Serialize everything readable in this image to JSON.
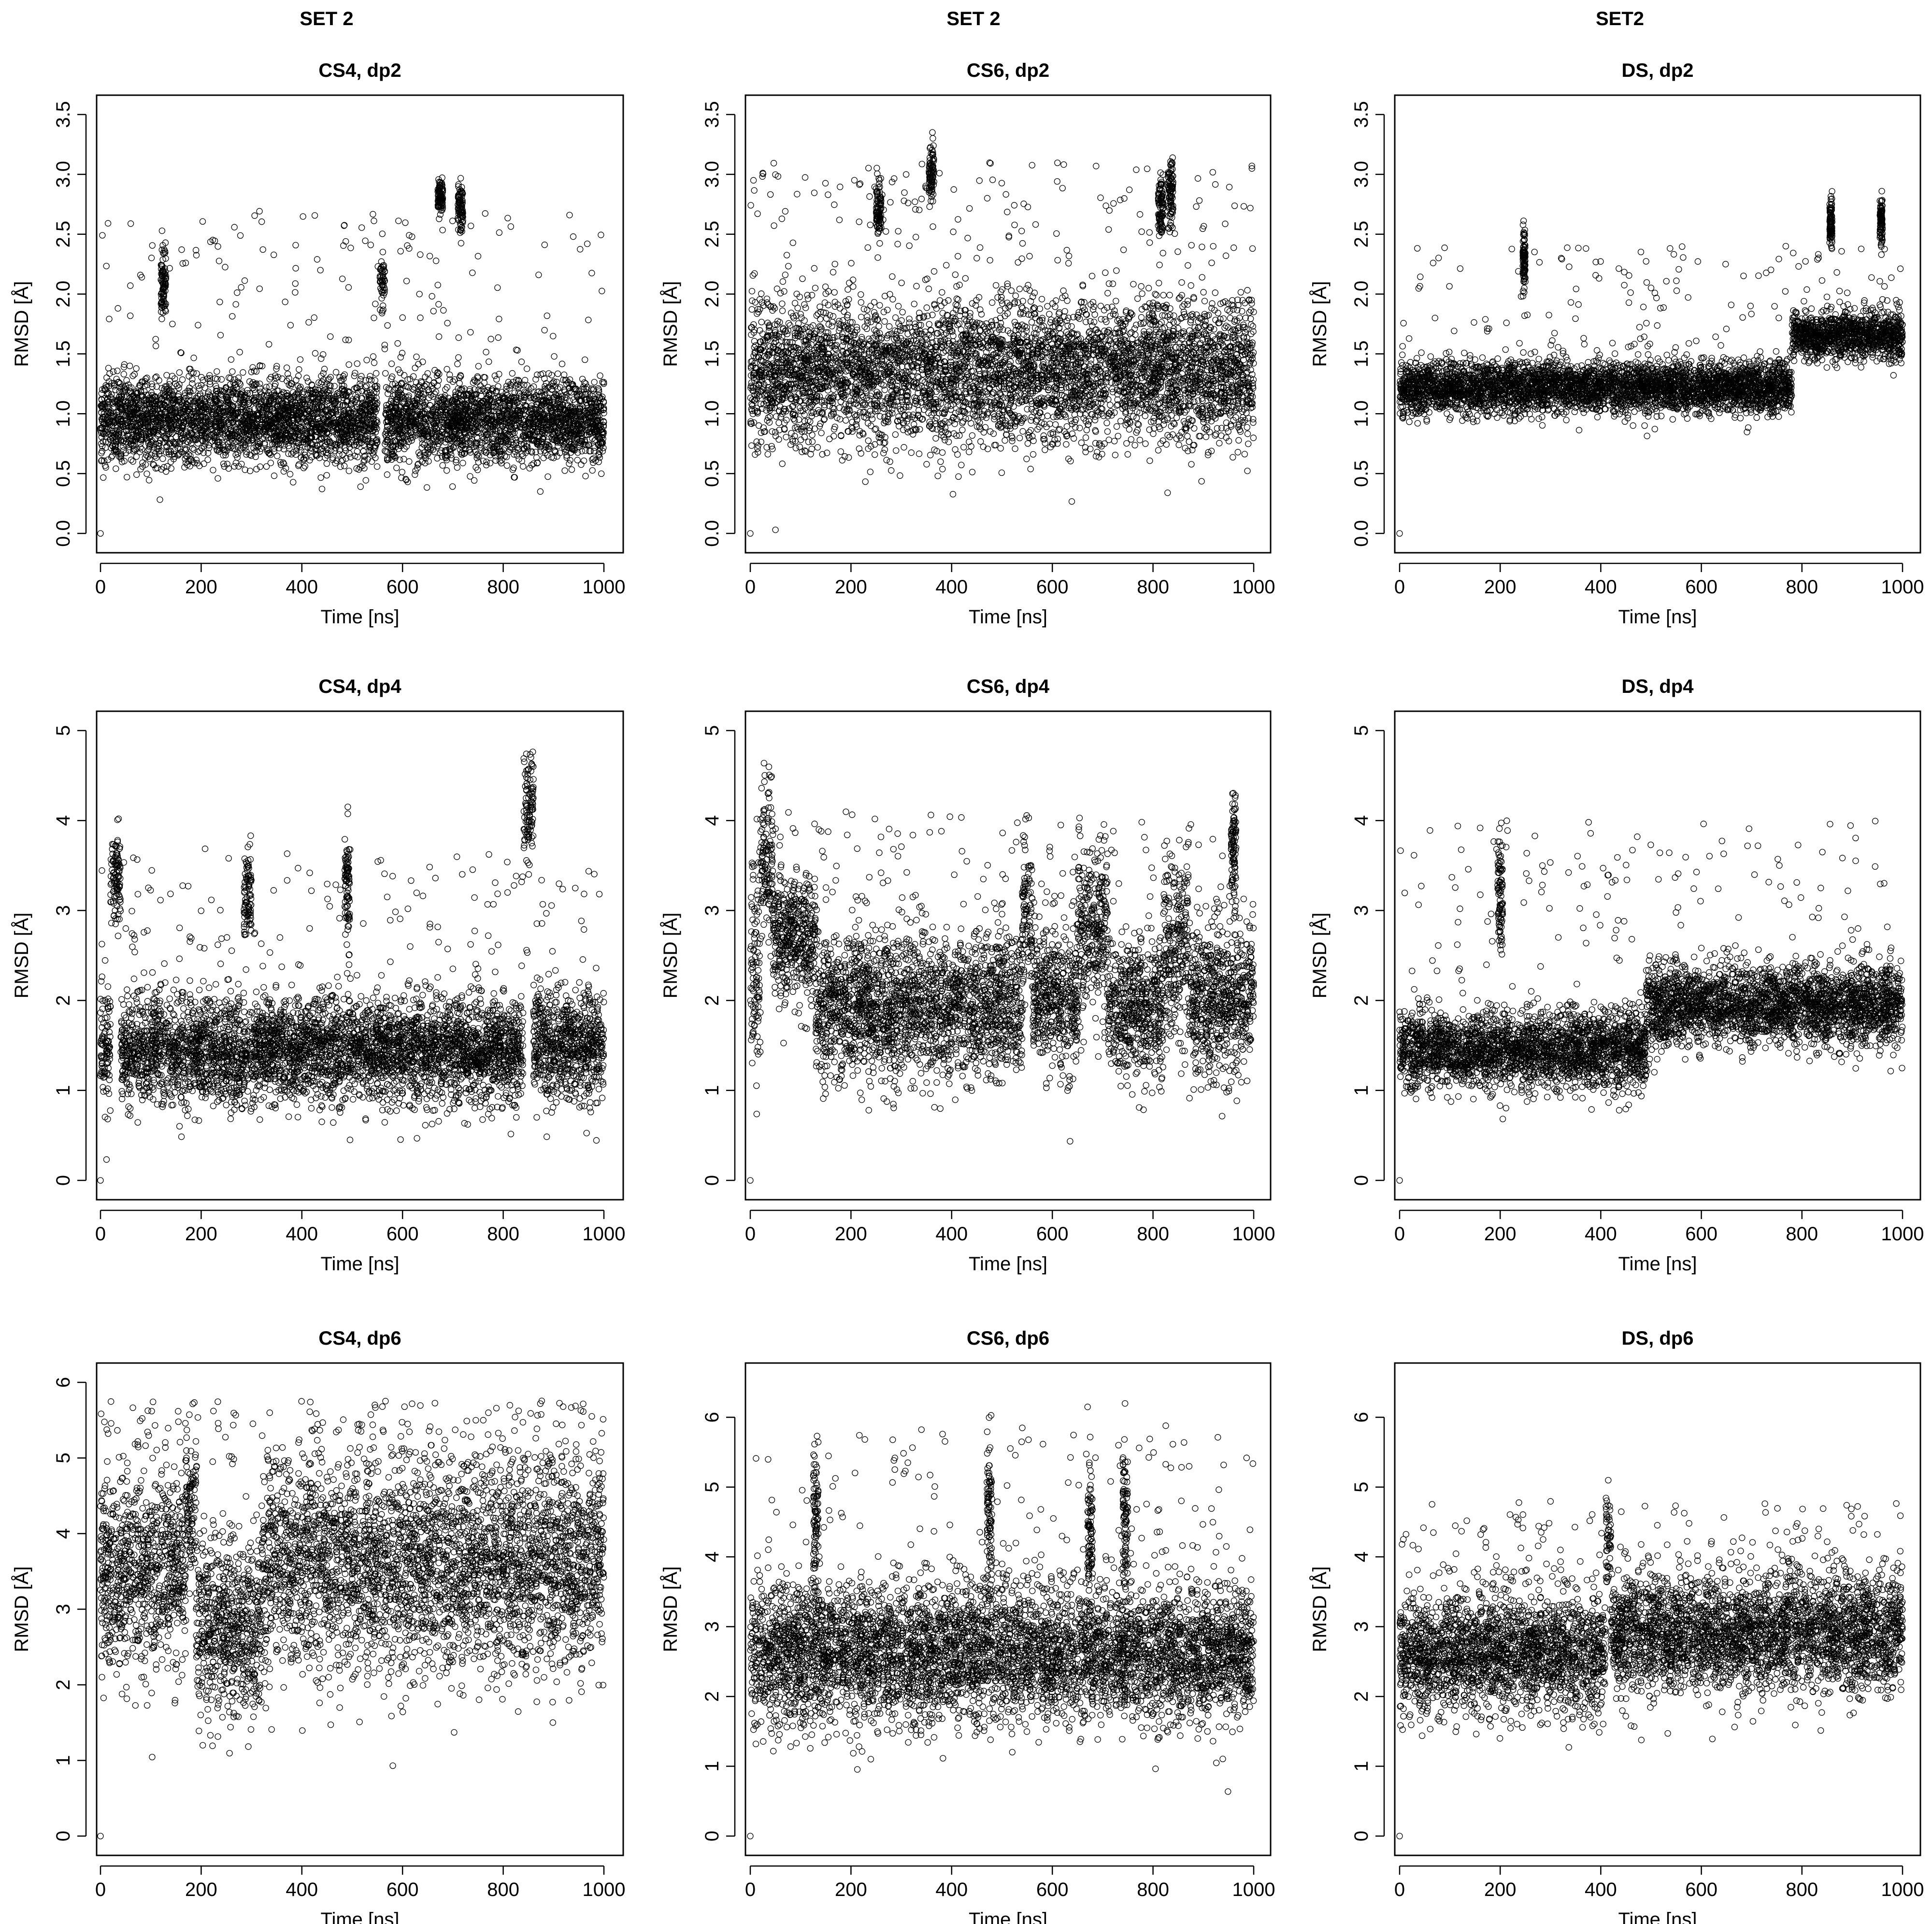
{
  "column_titles": [
    "SET 2",
    "SET 2",
    "SET2"
  ],
  "chart_data": [
    {
      "type": "scatter",
      "title": "CS4, dp2",
      "xlabel": "Time [ns]",
      "ylabel": "RMSD [Å]",
      "xlim": [
        0,
        1000
      ],
      "ylim": [
        0,
        3.5
      ],
      "xticks": [
        0,
        200,
        400,
        600,
        800,
        1000
      ],
      "yticks": [
        0,
        0.5,
        1.0,
        1.5,
        2.0,
        2.5,
        3.0,
        3.5
      ],
      "ytick_labels": [
        "0.0",
        "0.5",
        "1.0",
        "1.5",
        "2.0",
        "2.5",
        "3.0",
        "3.5"
      ],
      "n_points": 5000,
      "first_point": [
        0,
        0.0
      ],
      "segments": [
        {
          "x": [
            0,
            550
          ],
          "center": 0.95,
          "spread": 0.18
        },
        {
          "x": [
            555,
            565
          ],
          "center": 2.1,
          "spread": 0.12
        },
        {
          "x": [
            565,
            1000
          ],
          "center": 0.95,
          "spread": 0.18
        }
      ],
      "bursts": [
        {
          "x": [
            120,
            130
          ],
          "center": 2.1,
          "spread": 0.15
        },
        {
          "x": [
            670,
            680
          ],
          "center": 2.8,
          "spread": 0.08
        },
        {
          "x": [
            710,
            720
          ],
          "center": 2.7,
          "spread": 0.1
        }
      ],
      "outlier_range": [
        1.4,
        2.7
      ]
    },
    {
      "type": "scatter",
      "title": "CS6, dp2",
      "xlabel": "Time [ns]",
      "ylabel": "RMSD [Å]",
      "xlim": [
        0,
        1000
      ],
      "ylim": [
        0,
        3.5
      ],
      "xticks": [
        0,
        200,
        400,
        600,
        800,
        1000
      ],
      "yticks": [
        0,
        0.5,
        1.0,
        1.5,
        2.0,
        2.5,
        3.0,
        3.5
      ],
      "ytick_labels": [
        "0.0",
        "0.5",
        "1.0",
        "1.5",
        "2.0",
        "2.5",
        "3.0",
        "3.5"
      ],
      "n_points": 5000,
      "first_point": [
        0,
        0.0
      ],
      "segments": [
        {
          "x": [
            0,
            1000
          ],
          "center": 1.35,
          "spread": 0.3
        }
      ],
      "bursts": [
        {
          "x": [
            250,
            260
          ],
          "center": 2.7,
          "spread": 0.15
        },
        {
          "x": [
            355,
            365
          ],
          "center": 3.0,
          "spread": 0.12
        },
        {
          "x": [
            810,
            820
          ],
          "center": 2.7,
          "spread": 0.15
        },
        {
          "x": [
            830,
            840
          ],
          "center": 2.85,
          "spread": 0.15
        }
      ],
      "outlier_range": [
        2.2,
        3.1
      ]
    },
    {
      "type": "scatter",
      "title": "DS, dp2",
      "xlabel": "Time [ns]",
      "ylabel": "RMSD [Å]",
      "xlim": [
        0,
        1000
      ],
      "ylim": [
        0,
        3.5
      ],
      "xticks": [
        0,
        200,
        400,
        600,
        800,
        1000
      ],
      "yticks": [
        0,
        0.5,
        1.0,
        1.5,
        2.0,
        2.5,
        3.0,
        3.5
      ],
      "ytick_labels": [
        "0.0",
        "0.5",
        "1.0",
        "1.5",
        "2.0",
        "2.5",
        "3.0",
        "3.5"
      ],
      "n_points": 5000,
      "first_point": [
        0,
        0.0
      ],
      "segments": [
        {
          "x": [
            0,
            780
          ],
          "center": 1.22,
          "spread": 0.11
        },
        {
          "x": [
            780,
            1000
          ],
          "center": 1.65,
          "spread": 0.1
        }
      ],
      "bursts": [
        {
          "x": [
            245,
            250
          ],
          "center": 2.3,
          "spread": 0.12
        },
        {
          "x": [
            855,
            860
          ],
          "center": 2.6,
          "spread": 0.1
        },
        {
          "x": [
            955,
            960
          ],
          "center": 2.6,
          "spread": 0.1
        }
      ],
      "outlier_range": [
        1.5,
        2.4
      ]
    },
    {
      "type": "scatter",
      "title": "CS4, dp4",
      "xlabel": "Time [ns]",
      "ylabel": "RMSD [Å]",
      "xlim": [
        0,
        1000
      ],
      "ylim": [
        0,
        5
      ],
      "xticks": [
        0,
        200,
        400,
        600,
        800,
        1000
      ],
      "yticks": [
        0,
        1,
        2,
        3,
        4,
        5
      ],
      "ytick_labels": [
        "0",
        "1",
        "2",
        "3",
        "4",
        "5"
      ],
      "n_points": 5000,
      "first_point": [
        0,
        0.0
      ],
      "segments": [
        {
          "x": [
            0,
            20
          ],
          "center": 1.5,
          "spread": 0.35
        },
        {
          "x": [
            20,
            40
          ],
          "center": 3.4,
          "spread": 0.25
        },
        {
          "x": [
            40,
            840
          ],
          "center": 1.45,
          "spread": 0.3
        },
        {
          "x": [
            840,
            860
          ],
          "center": 4.1,
          "spread": 0.3
        },
        {
          "x": [
            860,
            1000
          ],
          "center": 1.5,
          "spread": 0.32
        }
      ],
      "bursts": [
        {
          "x": [
            285,
            300
          ],
          "center": 3.2,
          "spread": 0.25
        },
        {
          "x": [
            485,
            495
          ],
          "center": 3.3,
          "spread": 0.3
        }
      ],
      "outlier_range": [
        2.2,
        3.7
      ]
    },
    {
      "type": "scatter",
      "title": "CS6, dp4",
      "xlabel": "Time [ns]",
      "ylabel": "RMSD [Å]",
      "xlim": [
        0,
        1000
      ],
      "ylim": [
        0,
        5
      ],
      "xticks": [
        0,
        200,
        400,
        600,
        800,
        1000
      ],
      "yticks": [
        0,
        1,
        2,
        3,
        4,
        5
      ],
      "ytick_labels": [
        "0",
        "1",
        "2",
        "3",
        "4",
        "5"
      ],
      "n_points": 5000,
      "first_point": [
        0,
        0.0
      ],
      "segments": [
        {
          "x": [
            0,
            20
          ],
          "center": 2.3,
          "spread": 0.6
        },
        {
          "x": [
            20,
            45
          ],
          "center": 3.6,
          "spread": 0.45
        },
        {
          "x": [
            45,
            130
          ],
          "center": 2.7,
          "spread": 0.35
        },
        {
          "x": [
            130,
            540
          ],
          "center": 1.95,
          "spread": 0.4
        },
        {
          "x": [
            540,
            560
          ],
          "center": 2.9,
          "spread": 0.45
        },
        {
          "x": [
            560,
            650
          ],
          "center": 2.0,
          "spread": 0.4
        },
        {
          "x": [
            650,
            710
          ],
          "center": 2.8,
          "spread": 0.45
        },
        {
          "x": [
            710,
            820
          ],
          "center": 1.9,
          "spread": 0.4
        },
        {
          "x": [
            820,
            870
          ],
          "center": 2.6,
          "spread": 0.5
        },
        {
          "x": [
            870,
            1000
          ],
          "center": 2.0,
          "spread": 0.42
        }
      ],
      "bursts": [
        {
          "x": [
            955,
            965
          ],
          "center": 3.7,
          "spread": 0.35
        }
      ],
      "outlier_range": [
        3.0,
        4.1
      ]
    },
    {
      "type": "scatter",
      "title": "DS, dp4",
      "xlabel": "Time [ns]",
      "ylabel": "RMSD [Å]",
      "xlim": [
        0,
        1000
      ],
      "ylim": [
        0,
        5
      ],
      "xticks": [
        0,
        200,
        400,
        600,
        800,
        1000
      ],
      "yticks": [
        0,
        1,
        2,
        3,
        4,
        5
      ],
      "ytick_labels": [
        "0",
        "1",
        "2",
        "3",
        "4",
        "5"
      ],
      "n_points": 5000,
      "first_point": [
        0,
        0.0
      ],
      "segments": [
        {
          "x": [
            0,
            490
          ],
          "center": 1.45,
          "spread": 0.22
        },
        {
          "x": [
            490,
            1000
          ],
          "center": 1.95,
          "spread": 0.22
        }
      ],
      "bursts": [
        {
          "x": [
            195,
            205
          ],
          "center": 3.2,
          "spread": 0.3
        }
      ],
      "outlier_range": [
        2.3,
        4.0
      ]
    },
    {
      "type": "scatter",
      "title": "CS4, dp6",
      "xlabel": "Time [ns]",
      "ylabel": "RMSD [Å]",
      "xlim": [
        0,
        1000
      ],
      "ylim": [
        0,
        6
      ],
      "xticks": [
        0,
        200,
        400,
        600,
        800,
        1000
      ],
      "yticks": [
        0,
        1,
        2,
        3,
        4,
        5,
        6
      ],
      "ytick_labels": [
        "0",
        "1",
        "2",
        "3",
        "4",
        "5",
        "6"
      ],
      "n_points": 5000,
      "first_point": [
        0,
        0.0
      ],
      "segments": [
        {
          "x": [
            0,
            170
          ],
          "center": 3.5,
          "spread": 0.65
        },
        {
          "x": [
            170,
            190
          ],
          "center": 4.3,
          "spread": 0.5
        },
        {
          "x": [
            190,
            320
          ],
          "center": 2.8,
          "spread": 0.6
        },
        {
          "x": [
            320,
            1000
          ],
          "center": 3.6,
          "spread": 0.7
        }
      ],
      "bursts": [],
      "outlier_range": [
        4.8,
        5.8
      ]
    },
    {
      "type": "scatter",
      "title": "CS6, dp6",
      "xlabel": "Time [ns]",
      "ylabel": "RMSD [Å]",
      "xlim": [
        0,
        1000
      ],
      "ylim": [
        0,
        6.5
      ],
      "xticks": [
        0,
        200,
        400,
        600,
        800,
        1000
      ],
      "yticks": [
        0,
        1,
        2,
        3,
        4,
        5,
        6
      ],
      "ytick_labels": [
        "0",
        "1",
        "2",
        "3",
        "4",
        "5",
        "6"
      ],
      "n_points": 5000,
      "first_point": [
        0,
        0.0
      ],
      "segments": [
        {
          "x": [
            0,
            1000
          ],
          "center": 2.6,
          "spread": 0.5
        }
      ],
      "bursts": [
        {
          "x": [
            125,
            135
          ],
          "center": 4.5,
          "spread": 0.6
        },
        {
          "x": [
            470,
            480
          ],
          "center": 4.6,
          "spread": 0.6
        },
        {
          "x": [
            670,
            680
          ],
          "center": 4.3,
          "spread": 0.5
        },
        {
          "x": [
            740,
            750
          ],
          "center": 4.5,
          "spread": 0.6
        }
      ],
      "outlier_range": [
        3.5,
        5.9
      ]
    },
    {
      "type": "scatter",
      "title": "DS, dp6",
      "xlabel": "Time [ns]",
      "ylabel": "RMSD [Å]",
      "xlim": [
        0,
        1000
      ],
      "ylim": [
        0,
        6.5
      ],
      "xticks": [
        0,
        200,
        400,
        600,
        800,
        1000
      ],
      "yticks": [
        0,
        1,
        2,
        3,
        4,
        5,
        6
      ],
      "ytick_labels": [
        "0",
        "1",
        "2",
        "3",
        "4",
        "5",
        "6"
      ],
      "n_points": 5000,
      "first_point": [
        0,
        0.0
      ],
      "segments": [
        {
          "x": [
            0,
            410
          ],
          "center": 2.6,
          "spread": 0.42
        },
        {
          "x": [
            410,
            420
          ],
          "center": 4.3,
          "spread": 0.4
        },
        {
          "x": [
            420,
            1000
          ],
          "center": 2.9,
          "spread": 0.42
        }
      ],
      "bursts": [],
      "outlier_range": [
        3.6,
        4.8
      ]
    }
  ]
}
